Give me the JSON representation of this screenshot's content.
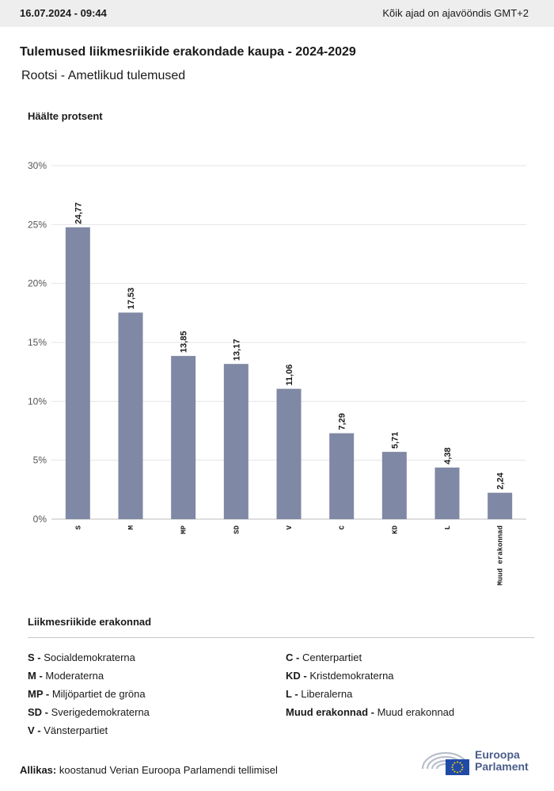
{
  "header": {
    "datetime": "16.07.2024 - 09:44",
    "timezone_note": "Kõik ajad on ajavööndis GMT+2"
  },
  "title": "Tulemused liikmesriikide erakondade kaupa - 2024-2029",
  "subtitle": "Rootsi - Ametlikud tulemused",
  "colors": {
    "bar": "#7f88a4",
    "grid": "#e4e4e4",
    "axis": "#bdbdbd"
  },
  "chart_data": {
    "type": "bar",
    "ylabel": "Häälte protsent",
    "categories": [
      "S",
      "M",
      "MP",
      "SD",
      "V",
      "C",
      "KD",
      "L",
      "Muud erakonnad"
    ],
    "values": [
      24.77,
      17.53,
      13.85,
      13.17,
      11.06,
      7.29,
      5.71,
      4.38,
      2.24
    ],
    "value_labels": [
      "24,77",
      "17,53",
      "13,85",
      "13,17",
      "11,06",
      "7,29",
      "5,71",
      "4,38",
      "2,24"
    ],
    "ylim": [
      0,
      30
    ],
    "yticks": [
      0,
      5,
      10,
      15,
      20,
      25,
      30
    ],
    "ytick_labels": [
      "0%",
      "5%",
      "10%",
      "15%",
      "20%",
      "25%",
      "30%"
    ],
    "grid": true
  },
  "legend": {
    "title": "Liikmesriikide erakonnad",
    "items": [
      {
        "abbr": "S -",
        "name": "Socialdemokraterna"
      },
      {
        "abbr": "M -",
        "name": "Moderaterna"
      },
      {
        "abbr": "MP -",
        "name": "Miljöpartiet de gröna"
      },
      {
        "abbr": "SD -",
        "name": "Sverigedemokraterna"
      },
      {
        "abbr": "V -",
        "name": "Vänsterpartiet"
      },
      {
        "abbr": "C -",
        "name": "Centerpartiet"
      },
      {
        "abbr": "KD -",
        "name": "Kristdemokraterna"
      },
      {
        "abbr": "L -",
        "name": "Liberalerna"
      },
      {
        "abbr": "Muud erakonnad -",
        "name": "Muud erakonnad"
      }
    ]
  },
  "source": {
    "label": "Allikas:",
    "text": "koostanud Verian Euroopa Parlamendi tellimisel"
  },
  "logo": {
    "line1": "Euroopa",
    "line2": "Parlament"
  }
}
